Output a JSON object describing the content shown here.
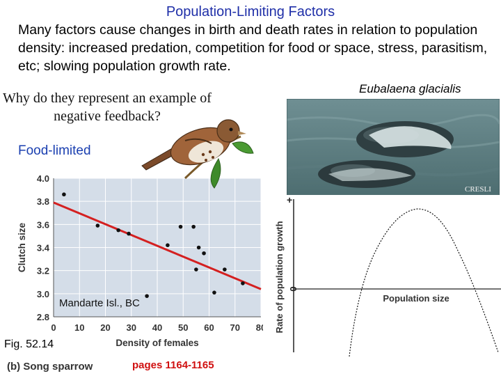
{
  "slide": {
    "title": "Population-Limiting Factors",
    "intro": "Many factors cause changes in birth and death rates in relation to population density: increased predation, competition for food or space, stress, parasitism, etc; slowing population growth rate.",
    "question": "Why do they represent an example of negative feedback?",
    "food_limited": "Food-limited",
    "species_name": "Eubalaena glacialis",
    "photo_credit": "CRESLI",
    "location_label": "Mandarte Isl., BC",
    "figure_label": "Fig. 52.14",
    "panel_caption": "(b) Song sparrow",
    "pages": "pages 1164-1165",
    "colors": {
      "title": "#1f2fa8",
      "food_limited": "#1a3fb0",
      "pages": "#d01010",
      "trend": "#d42020",
      "plot_bg": "#d4dde8"
    }
  },
  "chart_data": [
    {
      "type": "scatter",
      "title": "",
      "xlabel": "Density of females",
      "ylabel": "Clutch size",
      "xlim": [
        0,
        80
      ],
      "ylim": [
        2.8,
        4.0
      ],
      "xticks": [
        "0",
        "10",
        "20",
        "30",
        "40",
        "50",
        "60",
        "70",
        "80"
      ],
      "yticks": [
        "2.8",
        "3.0",
        "3.2",
        "3.4",
        "3.6",
        "3.8",
        "4.0"
      ],
      "grid": true,
      "points": [
        {
          "x": 4,
          "y": 3.86
        },
        {
          "x": 17,
          "y": 3.59
        },
        {
          "x": 25,
          "y": 3.55
        },
        {
          "x": 29,
          "y": 3.52
        },
        {
          "x": 36,
          "y": 2.98
        },
        {
          "x": 44,
          "y": 3.42
        },
        {
          "x": 49,
          "y": 3.58
        },
        {
          "x": 54,
          "y": 3.58
        },
        {
          "x": 55,
          "y": 3.21
        },
        {
          "x": 56,
          "y": 3.4
        },
        {
          "x": 58,
          "y": 3.35
        },
        {
          "x": 62,
          "y": 3.01
        },
        {
          "x": 66,
          "y": 3.21
        },
        {
          "x": 73,
          "y": 3.09
        }
      ],
      "trendline": {
        "x": [
          0,
          80
        ],
        "y": [
          3.79,
          3.04
        ]
      }
    },
    {
      "type": "line",
      "title": "",
      "xlabel": "Population size",
      "ylabel": "Rate of population growth",
      "y_tick_labels": [
        "+",
        "0"
      ],
      "note": ""
    }
  ]
}
